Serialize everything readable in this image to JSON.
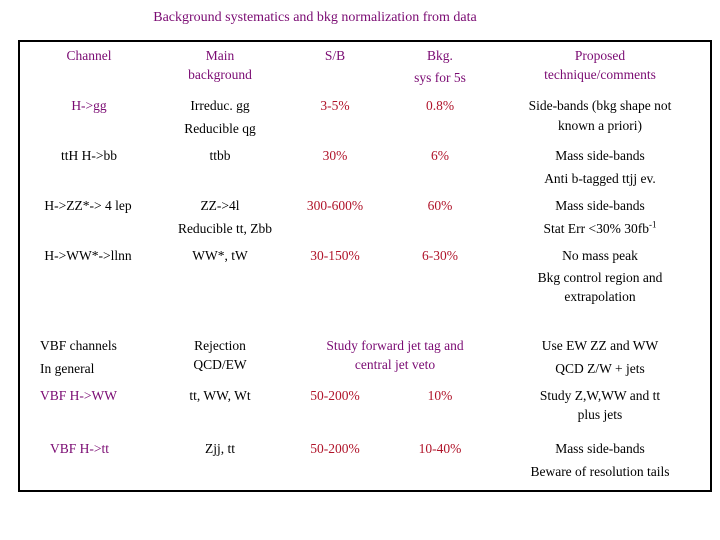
{
  "title": "Background systematics and bkg normalization from data",
  "header": {
    "channel": "Channel",
    "main_bg_1": "Main",
    "main_bg_2": "background",
    "sb": "S/B",
    "bkg_1": "Bkg.",
    "bkg_2": "sys for 5s",
    "proposed_1": "Proposed",
    "proposed_2": "technique/comments"
  },
  "rows": [
    {
      "channel": "H->gg",
      "main_1": "Irreduc. gg",
      "main_2": "Reducible qg",
      "sb": "3-5%",
      "bkg": "0.8%",
      "c1": "Side-bands (bkg shape not",
      "c2": "known a priori)"
    },
    {
      "channel": "ttH H->bb",
      "main_1": "ttbb",
      "sb": "30%",
      "bkg": "6%",
      "c1": "Mass side-bands",
      "c2": "Anti b-tagged ttjj ev."
    },
    {
      "channel": "H->ZZ*-> 4 lep",
      "main_1": "ZZ->4l",
      "main_2": "Reducible tt, Zbb",
      "sb": "300-600%",
      "bkg": "60%",
      "c1": "Mass side-bands",
      "c2": "Stat Err <30% 30fb",
      "c2_sup": "-1"
    },
    {
      "channel": "H->WW*->llnn",
      "main_1": "WW*, tW",
      "sb": "30-150%",
      "bkg": "6-30%",
      "c1": "No mass peak",
      "c2": "Bkg control region and",
      "c3": "extrapolation"
    },
    {
      "channel_1": "VBF channels",
      "channel_2": "In general",
      "main_1": "Rejection",
      "main_2": "QCD/EW",
      "study_1": "Study forward jet tag and",
      "study_2": "central jet veto",
      "c1": "Use EW ZZ and WW",
      "c2": "QCD Z/W + jets"
    },
    {
      "channel": "VBF H->WW",
      "main_1": "tt, WW, Wt",
      "sb": "50-200%",
      "bkg": "10%",
      "c1": "Study Z,W,WW and tt",
      "c2": "plus jets"
    },
    {
      "channel": "VBF H->tt",
      "main_1": "Zjj, tt",
      "sb": "50-200%",
      "bkg": "10-40%",
      "c1": "Mass side-bands",
      "c2": "Beware of resolution tails"
    }
  ]
}
